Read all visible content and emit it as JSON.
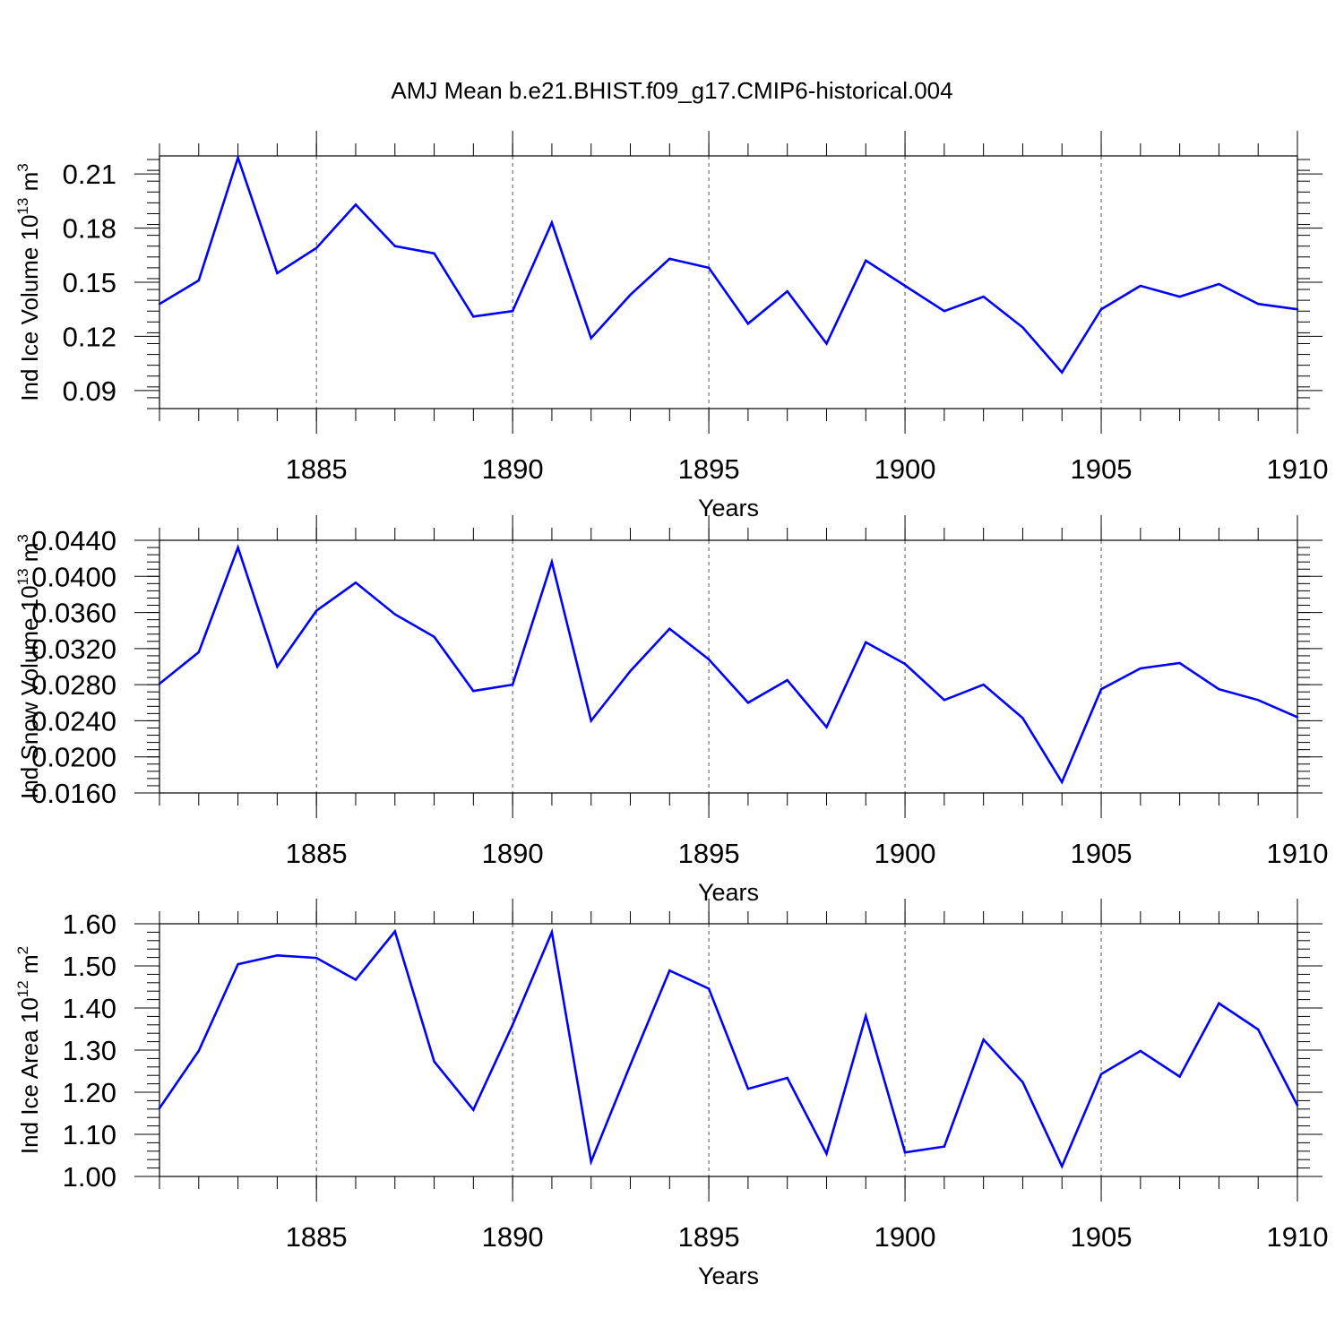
{
  "title": "AMJ Mean b.e21.BHIST.f09_g17.CMIP6-historical.004",
  "line_color": "#0000ff",
  "chart_data": [
    {
      "type": "line",
      "ylabel": "Ind Ice Volume 10",
      "ylabel_exp": "13",
      "ylabel_unit": " m",
      "ylabel_unit_exp": "3",
      "xlabel": "Years",
      "xlim": [
        1881,
        1910
      ],
      "ylim": [
        0.08,
        0.22
      ],
      "yticks": [
        0.09,
        0.12,
        0.15,
        0.18,
        0.21
      ],
      "ytick_labels": [
        "0.09",
        "0.12",
        "0.15",
        "0.18",
        "0.21"
      ],
      "xticks": [
        1885,
        1890,
        1895,
        1900,
        1905,
        1910
      ],
      "xtick_labels": [
        "1885",
        "1890",
        "1895",
        "1900",
        "1905",
        "1910"
      ],
      "x": [
        1881,
        1882,
        1883,
        1884,
        1885,
        1886,
        1887,
        1888,
        1889,
        1890,
        1891,
        1892,
        1893,
        1894,
        1895,
        1896,
        1897,
        1898,
        1899,
        1900,
        1901,
        1902,
        1903,
        1904,
        1905,
        1906,
        1907,
        1908,
        1909,
        1910
      ],
      "values": [
        0.138,
        0.151,
        0.219,
        0.155,
        0.169,
        0.193,
        0.17,
        0.166,
        0.131,
        0.134,
        0.183,
        0.119,
        0.143,
        0.163,
        0.158,
        0.127,
        0.145,
        0.116,
        0.162,
        0.148,
        0.134,
        0.142,
        0.125,
        0.1,
        0.135,
        0.148,
        0.142,
        0.149,
        0.138,
        0.135
      ]
    },
    {
      "type": "line",
      "ylabel": "Ind Snow Volume 10",
      "ylabel_exp": "13",
      "ylabel_unit": " m",
      "ylabel_unit_exp": "3",
      "xlabel": "Years",
      "xlim": [
        1881,
        1910
      ],
      "ylim": [
        0.016,
        0.044
      ],
      "yticks": [
        0.016,
        0.02,
        0.024,
        0.028,
        0.032,
        0.036,
        0.04,
        0.044
      ],
      "ytick_labels": [
        "0.0160",
        "0.0200",
        "0.0240",
        "0.0280",
        "0.0320",
        "0.0360",
        "0.0400",
        "0.0440"
      ],
      "xticks": [
        1885,
        1890,
        1895,
        1900,
        1905,
        1910
      ],
      "xtick_labels": [
        "1885",
        "1890",
        "1895",
        "1900",
        "1905",
        "1910"
      ],
      "x": [
        1881,
        1882,
        1883,
        1884,
        1885,
        1886,
        1887,
        1888,
        1889,
        1890,
        1891,
        1892,
        1893,
        1894,
        1895,
        1896,
        1897,
        1898,
        1899,
        1900,
        1901,
        1902,
        1903,
        1904,
        1905,
        1906,
        1907,
        1908,
        1909,
        1910
      ],
      "values": [
        0.0281,
        0.0316,
        0.0432,
        0.03,
        0.0362,
        0.0393,
        0.0358,
        0.0333,
        0.0273,
        0.028,
        0.0416,
        0.024,
        0.0295,
        0.0342,
        0.0308,
        0.026,
        0.0285,
        0.0233,
        0.0327,
        0.0303,
        0.0263,
        0.028,
        0.0243,
        0.0172,
        0.0275,
        0.0298,
        0.0304,
        0.0275,
        0.0263,
        0.0244
      ]
    },
    {
      "type": "line",
      "ylabel": "Ind Ice Area 10",
      "ylabel_exp": "12",
      "ylabel_unit": " m",
      "ylabel_unit_exp": "2",
      "xlabel": "Years",
      "xlim": [
        1881,
        1910
      ],
      "ylim": [
        1.0,
        1.6
      ],
      "yticks": [
        1.0,
        1.1,
        1.2,
        1.3,
        1.4,
        1.5,
        1.6
      ],
      "ytick_labels": [
        "1.00",
        "1.10",
        "1.20",
        "1.30",
        "1.40",
        "1.50",
        "1.60"
      ],
      "xticks": [
        1885,
        1890,
        1895,
        1900,
        1905,
        1910
      ],
      "xtick_labels": [
        "1885",
        "1890",
        "1895",
        "1900",
        "1905",
        "1910"
      ],
      "x": [
        1881,
        1882,
        1883,
        1884,
        1885,
        1886,
        1887,
        1888,
        1889,
        1890,
        1891,
        1892,
        1893,
        1894,
        1895,
        1896,
        1897,
        1898,
        1899,
        1900,
        1901,
        1902,
        1903,
        1904,
        1905,
        1906,
        1907,
        1908,
        1909,
        1910
      ],
      "values": [
        1.162,
        1.298,
        1.504,
        1.525,
        1.519,
        1.467,
        1.582,
        1.273,
        1.158,
        1.36,
        1.58,
        1.035,
        1.265,
        1.489,
        1.446,
        1.208,
        1.234,
        1.054,
        1.381,
        1.057,
        1.071,
        1.325,
        1.224,
        1.024,
        1.243,
        1.298,
        1.237,
        1.411,
        1.349,
        1.169
      ]
    }
  ]
}
